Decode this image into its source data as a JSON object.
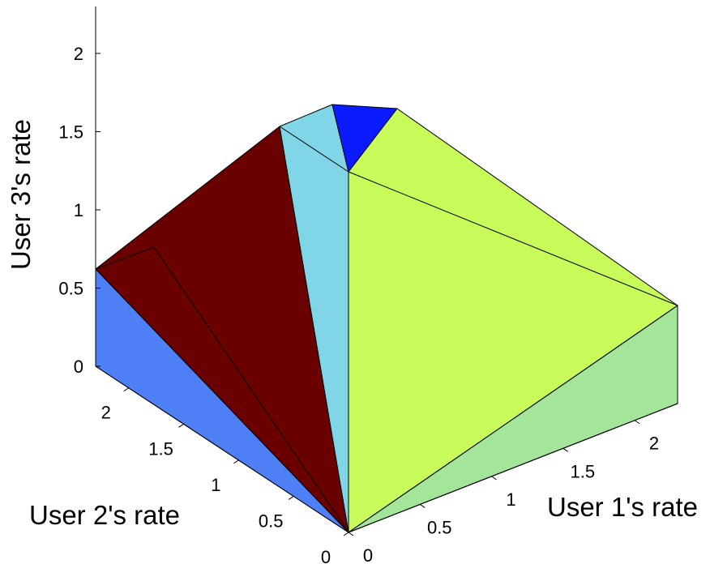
{
  "chart_data": {
    "type": "3d-surface",
    "title": "",
    "axes": {
      "x": {
        "label": "User 1's rate",
        "ticks": [
          "0",
          "0.5",
          "1",
          "1.5",
          "2"
        ],
        "range": [
          0,
          2.3
        ]
      },
      "y": {
        "label": "User 2's rate",
        "ticks": [
          "0",
          "0.5",
          "1",
          "1.5",
          "2"
        ],
        "range": [
          0,
          2.3
        ]
      },
      "z": {
        "label": "User 3's rate",
        "ticks": [
          "0",
          "0.5",
          "1",
          "1.5",
          "2"
        ],
        "range": [
          0,
          2.3
        ]
      }
    },
    "grid": false,
    "faces": [
      {
        "name": "face-blue-left",
        "color": "#4f7ff5",
        "opacity": 1.0
      },
      {
        "name": "face-dark-red",
        "color": "#6b0000",
        "opacity": 1.0
      },
      {
        "name": "face-light-cyan",
        "color": "#80d6e6",
        "opacity": 1.0
      },
      {
        "name": "face-blue-top",
        "color": "#0a1cff",
        "opacity": 1.0
      },
      {
        "name": "face-yellow-green",
        "color": "#c8fb5a",
        "opacity": 1.0
      },
      {
        "name": "face-green-right",
        "color": "#a3e69a",
        "opacity": 1.0
      }
    ]
  }
}
